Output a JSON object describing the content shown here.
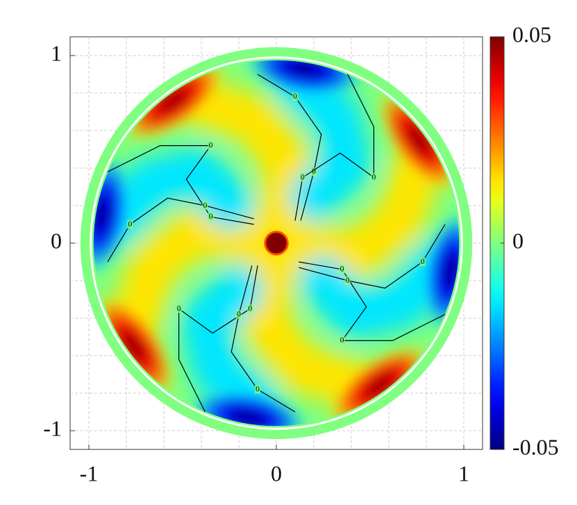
{
  "chart_data": {
    "type": "heatmap",
    "xlim": [
      -1.1,
      1.1
    ],
    "ylim": [
      -1.1,
      1.1
    ],
    "xticks": [
      -1,
      0,
      1
    ],
    "yticks": [
      -1,
      0,
      1
    ],
    "grid": true,
    "grid_ticks": [
      -1,
      -0.8,
      -0.6,
      -0.4,
      -0.2,
      0,
      0.2,
      0.4,
      0.6,
      0.8,
      1
    ],
    "clim": [
      -0.05,
      0.05
    ],
    "cticks": [
      -0.05,
      0,
      0.05
    ],
    "colormap": "jet",
    "contour_levels": [
      0
    ],
    "center_value": 0.05,
    "arms": [
      {
        "value": 0.015,
        "points": [
          [
            0.03,
            0.1
          ],
          [
            0.05,
            0.45
          ],
          [
            -0.12,
            0.66
          ],
          [
            -0.42,
            0.76
          ]
        ]
      },
      {
        "value": 0.015,
        "points": [
          [
            -0.1,
            0.03
          ],
          [
            -0.45,
            0.05
          ],
          [
            -0.66,
            -0.12
          ],
          [
            -0.76,
            -0.42
          ]
        ]
      },
      {
        "value": 0.015,
        "points": [
          [
            -0.03,
            -0.1
          ],
          [
            -0.05,
            -0.45
          ],
          [
            0.12,
            -0.66
          ],
          [
            0.42,
            -0.76
          ]
        ]
      },
      {
        "value": 0.015,
        "points": [
          [
            0.1,
            -0.03
          ],
          [
            0.45,
            -0.05
          ],
          [
            0.66,
            0.12
          ],
          [
            0.76,
            0.42
          ]
        ]
      },
      {
        "value": -0.015,
        "points": [
          [
            0.2,
            0.25
          ],
          [
            0.38,
            0.42
          ],
          [
            0.32,
            0.68
          ],
          [
            0.12,
            0.85
          ]
        ]
      },
      {
        "value": -0.015,
        "points": [
          [
            -0.25,
            0.2
          ],
          [
            -0.42,
            0.38
          ],
          [
            -0.68,
            0.32
          ],
          [
            -0.85,
            0.12
          ]
        ]
      },
      {
        "value": -0.015,
        "points": [
          [
            -0.2,
            -0.25
          ],
          [
            -0.38,
            -0.42
          ],
          [
            -0.32,
            -0.68
          ],
          [
            -0.12,
            -0.85
          ]
        ]
      },
      {
        "value": -0.015,
        "points": [
          [
            0.25,
            -0.2
          ],
          [
            0.42,
            -0.38
          ],
          [
            0.68,
            -0.32
          ],
          [
            0.85,
            -0.12
          ]
        ]
      }
    ],
    "peaks": [
      {
        "x": -0.55,
        "y": 0.76,
        "value": 0.05
      },
      {
        "x": -0.76,
        "y": -0.55,
        "value": 0.05
      },
      {
        "x": 0.55,
        "y": -0.76,
        "value": 0.05
      },
      {
        "x": 0.76,
        "y": 0.55,
        "value": 0.05
      },
      {
        "x": 0.15,
        "y": 0.93,
        "value": -0.05
      },
      {
        "x": -0.93,
        "y": 0.15,
        "value": -0.05
      },
      {
        "x": -0.15,
        "y": -0.93,
        "value": -0.05
      },
      {
        "x": 0.93,
        "y": -0.15,
        "value": -0.05
      }
    ]
  }
}
